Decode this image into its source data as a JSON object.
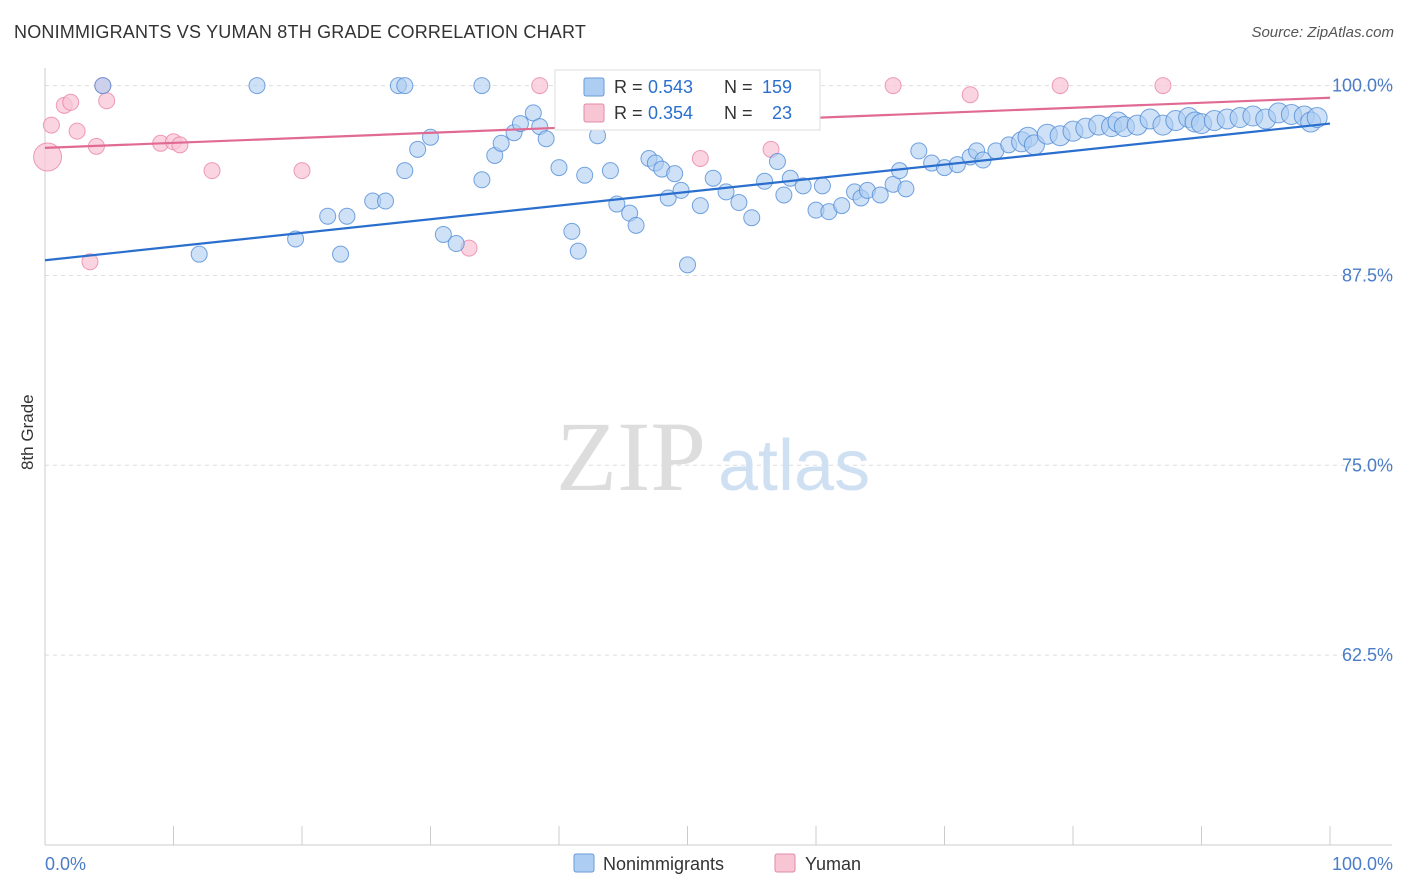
{
  "title": "NONIMMIGRANTS VS YUMAN 8TH GRADE CORRELATION CHART",
  "source": "Source: ZipAtlas.com",
  "watermark": {
    "zip": "ZIP",
    "atlas": "atlas"
  },
  "colors": {
    "blue": "#4a87d4",
    "blue_fill": "#aecdf2",
    "blue_line": "#2a6fce",
    "pink": "#e8789d",
    "pink_fill": "#f8c5d5",
    "pink_line": "#e06a94",
    "axis_text": "#4a7cc7",
    "grid": "#dddddd"
  },
  "chart_data": {
    "type": "scatter",
    "xlabel": "",
    "ylabel": "8th Grade",
    "xlim": [
      0,
      100
    ],
    "ylim": [
      50,
      100.5
    ],
    "x_tick_labels": [
      "0.0%",
      "100.0%"
    ],
    "y_ticks": [
      62.5,
      75.0,
      87.5,
      100.0
    ],
    "y_tick_labels": [
      "62.5%",
      "75.0%",
      "87.5%",
      "100.0%"
    ],
    "grid": "horizontal dashed",
    "legend_top": [
      {
        "r_label": "R = ",
        "r_value": "0.543",
        "n_label": "N = ",
        "n_value": "159"
      },
      {
        "r_label": "R = ",
        "r_value": "0.354",
        "n_label": "N = ",
        "n_value": "23"
      }
    ],
    "legend_bottom": [
      "Nonimmigrants",
      "Yuman"
    ],
    "series": [
      {
        "name": "Nonimmigrants",
        "trendline": [
          [
            0,
            88.5
          ],
          [
            100,
            97.5
          ]
        ],
        "points": [
          [
            4.5,
            100
          ],
          [
            16.5,
            100
          ],
          [
            27.5,
            100
          ],
          [
            28,
            100
          ],
          [
            34,
            100
          ],
          [
            12,
            88.9
          ],
          [
            19.5,
            89.9
          ],
          [
            22,
            91.4
          ],
          [
            23.5,
            91.4
          ],
          [
            23,
            88.9
          ],
          [
            25.5,
            92.4
          ],
          [
            26.5,
            92.4
          ],
          [
            28,
            94.4
          ],
          [
            29,
            95.8
          ],
          [
            30,
            96.6
          ],
          [
            31,
            90.2
          ],
          [
            32,
            89.6
          ],
          [
            34,
            93.8
          ],
          [
            35,
            95.4
          ],
          [
            35.5,
            96.2
          ],
          [
            36.5,
            96.9
          ],
          [
            37,
            97.5
          ],
          [
            38,
            98.2
          ],
          [
            38.5,
            97.3
          ],
          [
            39,
            96.5
          ],
          [
            40,
            94.6
          ],
          [
            41,
            90.4
          ],
          [
            41.5,
            89.1
          ],
          [
            42,
            94.1
          ],
          [
            43,
            96.7
          ],
          [
            43.5,
            97.9
          ],
          [
            44,
            94.4
          ],
          [
            44.5,
            92.2
          ],
          [
            45.5,
            91.6
          ],
          [
            46,
            90.8
          ],
          [
            47,
            95.2
          ],
          [
            47.5,
            94.9
          ],
          [
            48,
            94.5
          ],
          [
            48.5,
            92.6
          ],
          [
            49,
            94.2
          ],
          [
            49.5,
            93.1
          ],
          [
            50,
            88.2
          ],
          [
            51,
            92.1
          ],
          [
            52,
            93.9
          ],
          [
            53,
            93.0
          ],
          [
            54,
            92.3
          ],
          [
            55,
            91.3
          ],
          [
            56,
            93.7
          ],
          [
            57,
            95.0
          ],
          [
            57.5,
            92.8
          ],
          [
            58,
            93.9
          ],
          [
            59,
            93.4
          ],
          [
            60,
            91.8
          ],
          [
            60.5,
            93.4
          ],
          [
            61,
            91.7
          ],
          [
            62,
            92.1
          ],
          [
            63,
            93.0
          ],
          [
            63.5,
            92.6
          ],
          [
            64,
            93.1
          ],
          [
            65,
            92.8
          ],
          [
            66,
            93.5
          ],
          [
            66.5,
            94.4
          ],
          [
            67,
            93.2
          ],
          [
            68,
            95.7
          ],
          [
            69,
            94.9
          ],
          [
            70,
            94.6
          ],
          [
            71,
            94.8
          ],
          [
            72,
            95.3
          ],
          [
            72.5,
            95.7
          ],
          [
            73,
            95.1
          ],
          [
            74,
            95.7
          ],
          [
            75,
            96.1
          ],
          [
            76,
            96.3
          ],
          [
            76.5,
            96.6
          ],
          [
            77,
            96.1
          ],
          [
            78,
            96.8
          ],
          [
            79,
            96.7
          ],
          [
            80,
            97.0
          ],
          [
            81,
            97.2
          ],
          [
            82,
            97.4
          ],
          [
            83,
            97.3
          ],
          [
            83.5,
            97.6
          ],
          [
            84,
            97.3
          ],
          [
            85,
            97.4
          ],
          [
            86,
            97.8
          ],
          [
            87,
            97.4
          ],
          [
            88,
            97.7
          ],
          [
            89,
            97.9
          ],
          [
            89.5,
            97.6
          ],
          [
            90,
            97.5
          ],
          [
            91,
            97.7
          ],
          [
            92,
            97.8
          ],
          [
            93,
            97.9
          ],
          [
            94,
            98.0
          ],
          [
            95,
            97.8
          ],
          [
            96,
            98.2
          ],
          [
            97,
            98.1
          ],
          [
            98,
            98.0
          ],
          [
            98.5,
            97.6
          ],
          [
            99,
            97.9
          ]
        ]
      },
      {
        "name": "Yuman",
        "trendline": [
          [
            0,
            95.9
          ],
          [
            100,
            99.2
          ]
        ],
        "points": [
          [
            0.2,
            95.3
          ],
          [
            0.5,
            97.4
          ],
          [
            1.5,
            98.7
          ],
          [
            2,
            98.9
          ],
          [
            2.5,
            97.0
          ],
          [
            3.5,
            88.4
          ],
          [
            4,
            96.0
          ],
          [
            4.5,
            100
          ],
          [
            4.8,
            99.0
          ],
          [
            9,
            96.2
          ],
          [
            10,
            96.3
          ],
          [
            10.5,
            96.1
          ],
          [
            13,
            94.4
          ],
          [
            20,
            94.4
          ],
          [
            33,
            89.3
          ],
          [
            38.5,
            100
          ],
          [
            51,
            95.2
          ],
          [
            56.5,
            95.8
          ],
          [
            66,
            100
          ],
          [
            72,
            99.4
          ],
          [
            79,
            100
          ],
          [
            87,
            100
          ]
        ]
      }
    ]
  }
}
